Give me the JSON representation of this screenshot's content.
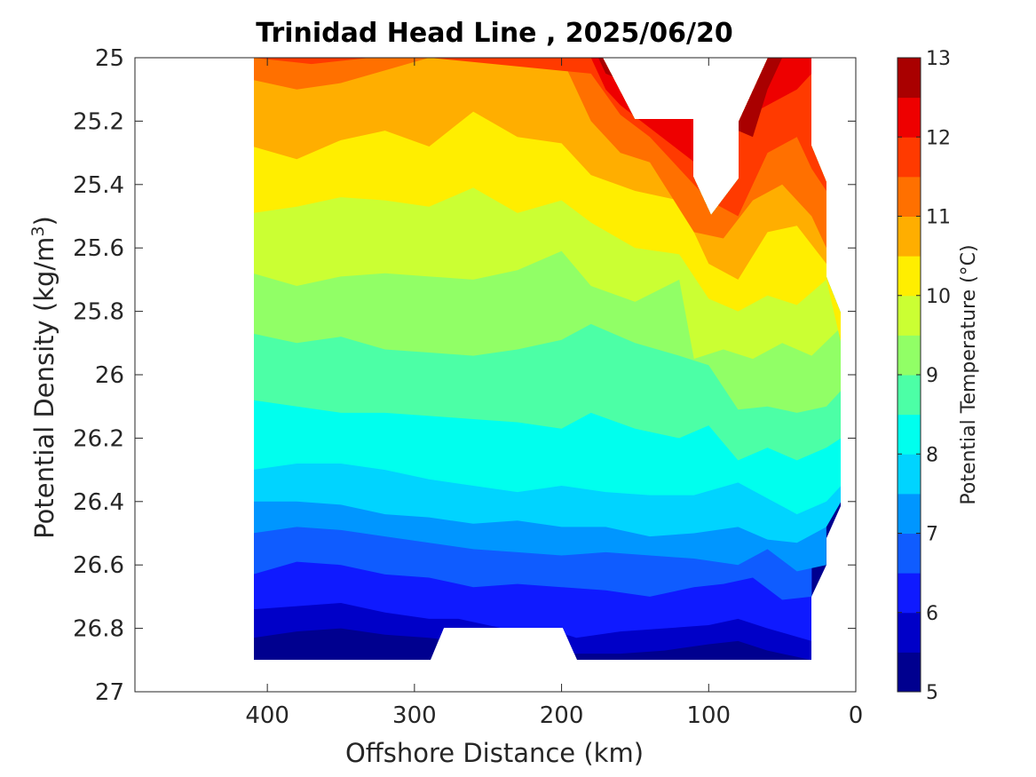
{
  "chart_data": {
    "type": "filled-contour",
    "title": "Trinidad Head Line , 2025/06/20",
    "xlabel": "Offshore Distance (km)",
    "ylabel": "Potential Density (kg/m",
    "ylabel_sup": "3",
    "ylabel_end": ")",
    "x_reversed": true,
    "y_reversed": true,
    "xlim": [
      490,
      0
    ],
    "ylim": [
      25,
      27
    ],
    "x_ticks": [
      400,
      300,
      200,
      100,
      0
    ],
    "x_tick_labels": [
      "400",
      "300",
      "200",
      "100",
      "0"
    ],
    "y_ticks": [
      25,
      25.2,
      25.4,
      25.6,
      25.8,
      26,
      26.2,
      26.4,
      26.6,
      26.8,
      27
    ],
    "y_tick_labels": [
      "25",
      "25.2",
      "25.4",
      "25.6",
      "25.8",
      "26",
      "26.2",
      "26.4",
      "26.6",
      "26.8",
      "27"
    ],
    "colorbar": {
      "label": "Potential Temperature (°C)",
      "range": [
        5,
        13
      ],
      "tick_values": [
        5,
        6,
        7,
        8,
        9,
        10,
        11,
        12,
        13
      ],
      "tick_labels": [
        "5",
        "6",
        "7",
        "8",
        "9",
        "10",
        "11",
        "12",
        "13"
      ],
      "level_step": 0.5,
      "colors": [
        "#00008f",
        "#0000c8",
        "#0f1aff",
        "#0f5cff",
        "#0096ff",
        "#00d4ff",
        "#00ffee",
        "#4cffa6",
        "#91ff66",
        "#cbff33",
        "#ffee00",
        "#ffae00",
        "#ff7000",
        "#ff3a00",
        "#ee0000",
        "#a90000"
      ]
    },
    "data_coverage_x": [
      410,
      10
    ],
    "data_coverage_y": [
      25,
      26.9
    ],
    "isotherms": [
      {
        "temperature": 5.5,
        "x": [
          410,
          380,
          350,
          320,
          290,
          190,
          160,
          130,
          100,
          80,
          60,
          30
        ],
        "sigma": [
          26.83,
          26.81,
          26.8,
          26.82,
          26.83,
          26.88,
          26.88,
          26.87,
          26.85,
          26.84,
          26.87,
          26.9
        ]
      },
      {
        "temperature": 6.0,
        "x": [
          410,
          380,
          350,
          320,
          290,
          270,
          240,
          210,
          190,
          160,
          130,
          100,
          80,
          60,
          30
        ],
        "sigma": [
          26.74,
          26.73,
          26.72,
          26.75,
          26.77,
          26.77,
          26.8,
          26.8,
          26.83,
          26.81,
          26.8,
          26.79,
          26.77,
          26.8,
          26.84
        ]
      },
      {
        "temperature": 6.5,
        "x": [
          410,
          380,
          350,
          320,
          290,
          260,
          230,
          200,
          170,
          140,
          110,
          90,
          70,
          50,
          30
        ],
        "sigma": [
          26.63,
          26.59,
          26.6,
          26.63,
          26.64,
          26.67,
          26.66,
          26.67,
          26.68,
          26.7,
          26.67,
          26.66,
          26.64,
          26.71,
          26.7
        ]
      },
      {
        "temperature": 7.0,
        "x": [
          410,
          380,
          350,
          320,
          290,
          260,
          230,
          200,
          170,
          140,
          110,
          80,
          60,
          40,
          20
        ],
        "sigma": [
          26.5,
          26.48,
          26.49,
          26.51,
          26.53,
          26.55,
          26.56,
          26.57,
          26.56,
          26.57,
          26.58,
          26.6,
          26.55,
          26.62,
          26.6
        ]
      },
      {
        "temperature": 7.5,
        "x": [
          410,
          380,
          350,
          320,
          290,
          260,
          230,
          200,
          170,
          140,
          110,
          80,
          60,
          40,
          20,
          10
        ],
        "sigma": [
          26.4,
          26.4,
          26.41,
          26.44,
          26.45,
          26.47,
          26.46,
          26.48,
          26.48,
          26.51,
          26.5,
          26.48,
          26.52,
          26.53,
          26.48,
          26.4
        ]
      },
      {
        "temperature": 8.0,
        "x": [
          410,
          380,
          350,
          320,
          290,
          260,
          230,
          200,
          170,
          140,
          110,
          80,
          60,
          40,
          20,
          10
        ],
        "sigma": [
          26.3,
          26.28,
          26.28,
          26.3,
          26.33,
          26.35,
          26.37,
          26.35,
          26.37,
          26.38,
          26.38,
          26.34,
          26.39,
          26.44,
          26.4,
          26.35
        ]
      },
      {
        "temperature": 8.5,
        "x": [
          410,
          380,
          350,
          320,
          290,
          260,
          230,
          200,
          180,
          150,
          120,
          100,
          80,
          60,
          40,
          20,
          10
        ],
        "sigma": [
          26.08,
          26.1,
          26.12,
          26.12,
          26.13,
          26.14,
          26.15,
          26.17,
          26.12,
          26.17,
          26.2,
          26.16,
          26.27,
          26.23,
          26.27,
          26.23,
          26.2
        ]
      },
      {
        "temperature": 9.0,
        "x": [
          410,
          380,
          350,
          320,
          290,
          260,
          230,
          200,
          180,
          150,
          120,
          100,
          80,
          60,
          40,
          20,
          10
        ],
        "sigma": [
          25.87,
          25.9,
          25.88,
          25.92,
          25.93,
          25.94,
          25.92,
          25.89,
          25.84,
          25.9,
          25.94,
          25.97,
          26.11,
          26.1,
          26.12,
          26.1,
          26.05
        ]
      },
      {
        "temperature": 9.5,
        "x": [
          410,
          380,
          350,
          320,
          290,
          260,
          230,
          200,
          180,
          150,
          120,
          110,
          90,
          70,
          50,
          30,
          10
        ],
        "sigma": [
          25.68,
          25.72,
          25.69,
          25.68,
          25.69,
          25.7,
          25.67,
          25.61,
          25.72,
          25.77,
          25.7,
          25.95,
          25.92,
          25.95,
          25.9,
          25.94,
          25.85
        ]
      },
      {
        "temperature": 10.0,
        "x": [
          410,
          380,
          350,
          320,
          290,
          260,
          230,
          200,
          180,
          150,
          120,
          100,
          80,
          60,
          40,
          20,
          10
        ],
        "sigma": [
          25.49,
          25.47,
          25.44,
          25.45,
          25.47,
          25.41,
          25.49,
          25.45,
          25.52,
          25.6,
          25.62,
          25.76,
          25.8,
          25.75,
          25.78,
          25.7,
          25.9
        ]
      },
      {
        "temperature": 10.5,
        "x": [
          410,
          380,
          350,
          320,
          290,
          260,
          230,
          200,
          180,
          150,
          120,
          100,
          80,
          60,
          40,
          20,
          10
        ],
        "sigma": [
          25.28,
          25.32,
          25.26,
          25.23,
          25.28,
          25.17,
          25.25,
          25.27,
          25.37,
          25.42,
          25.45,
          25.65,
          25.7,
          25.55,
          25.53,
          25.65,
          25.8
        ]
      },
      {
        "temperature": 11.0,
        "x": [
          410,
          380,
          350,
          320,
          290,
          260,
          230,
          200,
          180,
          160,
          140,
          110,
          90,
          70,
          50,
          30,
          20
        ],
        "sigma": [
          25.07,
          25.1,
          25.08,
          25.04,
          25.0,
          25.0,
          25.0,
          25.0,
          25.2,
          25.3,
          25.33,
          25.55,
          25.57,
          25.45,
          25.4,
          25.5,
          25.6
        ]
      },
      {
        "temperature": 11.5,
        "x": [
          410,
          370,
          330,
          300,
          290,
          180,
          160,
          140,
          120,
          100,
          80,
          60,
          40,
          30,
          20
        ],
        "sigma": [
          25.0,
          25.02,
          25.0,
          25.0,
          25.0,
          25.05,
          25.18,
          25.25,
          25.35,
          25.45,
          25.5,
          25.3,
          25.25,
          25.35,
          25.42
        ]
      },
      {
        "temperature": 12.0,
        "x": [
          180,
          170,
          160,
          90,
          80,
          60,
          40,
          30
        ],
        "sigma": [
          25.0,
          25.1,
          25.15,
          25.4,
          25.2,
          25.15,
          25.1,
          25.05
        ]
      },
      {
        "temperature": 12.5,
        "x": [
          175,
          170,
          70,
          60,
          50
        ],
        "sigma": [
          25.0,
          25.05,
          25.25,
          25.1,
          25.0
        ]
      }
    ]
  }
}
